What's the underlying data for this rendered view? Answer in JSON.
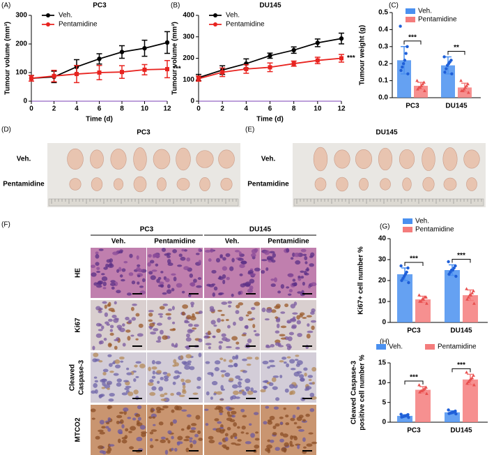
{
  "chart_data": [
    {
      "type": "line",
      "label": "(A)",
      "title": "PC3",
      "y_label": "Tumour volume (mm³)",
      "x_label": "Time (d)",
      "x": [
        0,
        2,
        4,
        6,
        8,
        10,
        12
      ],
      "xlim": [
        0,
        12
      ],
      "xticks": [
        0,
        2,
        4,
        6,
        8,
        10,
        12
      ],
      "ylim": [
        0,
        300
      ],
      "yticks": [
        0,
        100,
        200,
        300
      ],
      "series": [
        {
          "name": "Veh.",
          "color": "#000000",
          "values": [
            80,
            85,
            120,
            148,
            172,
            185,
            205
          ],
          "errors": [
            10,
            20,
            25,
            18,
            22,
            28,
            38
          ]
        },
        {
          "name": "Pentamidine",
          "color": "#e8231f",
          "values": [
            80,
            88,
            95,
            100,
            102,
            110,
            112
          ],
          "errors": [
            10,
            20,
            30,
            25,
            22,
            18,
            30
          ]
        }
      ],
      "annotation": "***"
    },
    {
      "type": "line",
      "label": "(B)",
      "title": "DU145",
      "y_label": "Tumour volume (mm³)",
      "x_label": "Time (d)",
      "x": [
        0,
        2,
        4,
        6,
        8,
        10,
        12
      ],
      "xlim": [
        0,
        12
      ],
      "xticks": [
        0,
        2,
        4,
        6,
        8,
        10,
        12
      ],
      "ylim": [
        0,
        400
      ],
      "yticks": [
        0,
        100,
        200,
        300,
        400
      ],
      "series": [
        {
          "name": "Veh.",
          "color": "#000000",
          "values": [
            110,
            145,
            175,
            212,
            238,
            272,
            292
          ],
          "errors": [
            15,
            20,
            22,
            12,
            15,
            18,
            25
          ]
        },
        {
          "name": "Pentamidine",
          "color": "#e8231f",
          "values": [
            105,
            135,
            150,
            158,
            175,
            190,
            200
          ],
          "errors": [
            12,
            20,
            20,
            20,
            12,
            15,
            18
          ]
        }
      ],
      "annotation": "***"
    },
    {
      "type": "bar",
      "label": "(C)",
      "y_label": "Tumour weight (g)",
      "categories": [
        "PC3",
        "DU145"
      ],
      "ylim": [
        0,
        0.5
      ],
      "yticks": [
        {
          "value": 0,
          "label": "0.0"
        },
        0.1,
        0.2,
        0.3,
        0.4,
        0.5
      ],
      "series": [
        {
          "name": "Veh.",
          "color": "#4a90f0",
          "values": [
            0.22,
            0.19
          ],
          "errors": [
            0.08,
            0.05
          ],
          "points": [
            [
              0.42,
              0.3,
              0.26,
              0.22,
              0.2,
              0.18,
              0.16,
              0.14
            ],
            [
              0.24,
              0.22,
              0.21,
              0.2,
              0.19,
              0.17,
              0.15,
              0.14
            ]
          ]
        },
        {
          "name": "Pentamidine",
          "color": "#f47c7c",
          "values": [
            0.07,
            0.06
          ],
          "errors": [
            0.02,
            0.025
          ],
          "points": [
            [
              0.1,
              0.09,
              0.08,
              0.07,
              0.06,
              0.06,
              0.05,
              0.04
            ],
            [
              0.1,
              0.08,
              0.07,
              0.06,
              0.05,
              0.04,
              0.04,
              0.03
            ]
          ]
        }
      ],
      "annotations": [
        "***",
        "**"
      ]
    },
    {
      "type": "bar",
      "label": "(G)",
      "y_label": "Ki67+ cell number %",
      "categories": [
        "PC3",
        "DU145"
      ],
      "ylim": [
        0,
        40
      ],
      "yticks": [
        0,
        10,
        20,
        30,
        40
      ],
      "series": [
        {
          "name": "Veh.",
          "color": "#4a90f0",
          "values": [
            23,
            25
          ],
          "errors": [
            3,
            2.5
          ],
          "points": [
            [
              27,
              26,
              24,
              23,
              22,
              21,
              20,
              19
            ],
            [
              29,
              27,
              26,
              25,
              25,
              24,
              23,
              22
            ]
          ]
        },
        {
          "name": "Pentamidine",
          "color": "#f47c7c",
          "values": [
            11,
            13
          ],
          "errors": [
            1.5,
            2.5
          ],
          "points": [
            [
              13,
              12,
              12,
              11,
              11,
              10,
              10,
              9
            ],
            [
              16,
              15,
              14,
              13,
              13,
              12,
              11,
              9
            ]
          ]
        }
      ],
      "annotations": [
        "***",
        "***"
      ]
    },
    {
      "type": "bar",
      "label": "(H)",
      "y_label": [
        "Cleaved Caspase-3",
        "positive cell number %"
      ],
      "categories": [
        "PC3",
        "DU145"
      ],
      "ylim": [
        0,
        15
      ],
      "yticks": [
        0,
        5,
        10,
        15
      ],
      "series": [
        {
          "name": "Veh.",
          "color": "#4a90f0",
          "values": [
            1.6,
            2.5
          ],
          "errors": [
            0.3,
            0.4
          ],
          "points": [
            [
              2,
              1.9,
              1.7,
              1.6,
              1.5,
              1.4,
              1.3,
              1.2
            ],
            [
              3.1,
              2.8,
              2.6,
              2.5,
              2.4,
              2.3,
              2.2,
              2.1
            ]
          ]
        },
        {
          "name": "Pentamidine",
          "color": "#f47c7c",
          "values": [
            8.2,
            10.8
          ],
          "errors": [
            0.8,
            1.3
          ],
          "points": [
            [
              9.4,
              8.8,
              8.5,
              8.2,
              8,
              7.9,
              7.6,
              7.2
            ],
            [
              12.6,
              11.8,
              11.2,
              10.9,
              10.6,
              10.2,
              9.8,
              9.4
            ]
          ]
        }
      ],
      "annotations": [
        "***",
        "***"
      ]
    }
  ],
  "photo_panels": [
    {
      "label": "(D)",
      "title": "PC3",
      "rows": [
        "Veh.",
        "Pentamidine"
      ]
    },
    {
      "label": "(E)",
      "title": "DU145",
      "rows": [
        "Veh.",
        "Pentamidine"
      ]
    }
  ],
  "ihc_panel": {
    "label": "(F)",
    "groups": [
      "PC3",
      "DU145"
    ],
    "columns": [
      "Veh.",
      "Pentamidine",
      "Veh.",
      "Pentamidine"
    ],
    "rows": [
      "HE",
      "Ki67",
      [
        "Cleaved",
        "Caspase-3"
      ],
      "MTCO2"
    ]
  }
}
